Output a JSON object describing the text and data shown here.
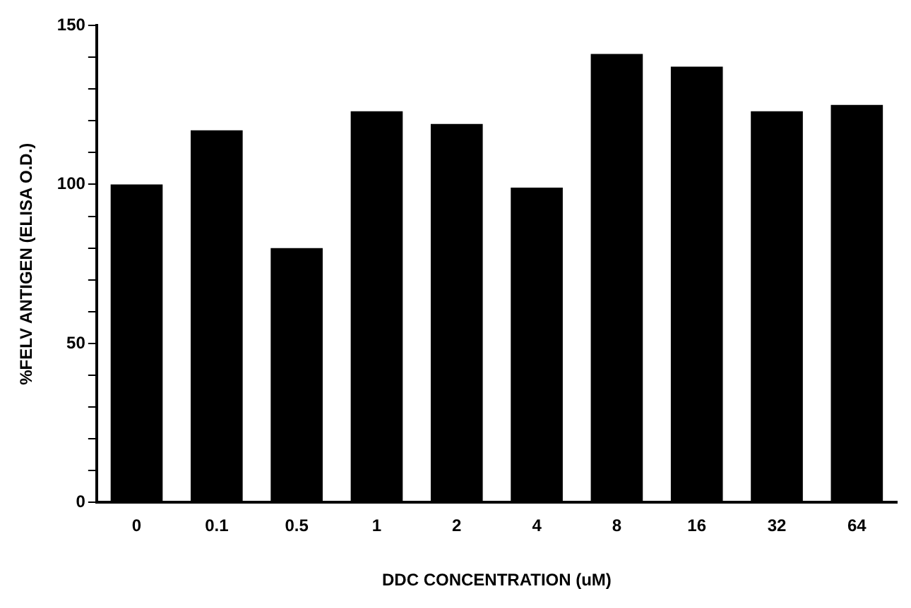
{
  "chart_data": {
    "type": "bar",
    "xlabel": "DDC CONCENTRATION (uM)",
    "ylabel": "%FELV ANTIGEN (ELISA O.D.)",
    "categories": [
      "0",
      "0.1",
      "0.5",
      "1",
      "2",
      "4",
      "8",
      "16",
      "32",
      "64"
    ],
    "values": [
      100,
      117,
      80,
      123,
      119,
      99,
      141,
      137,
      123,
      125
    ],
    "color": "#000000",
    "ylim": [
      0,
      150
    ],
    "yticks": [
      0,
      {
        "value": 10,
        "label": null
      },
      {
        "value": 20,
        "label": null
      },
      {
        "value": 30,
        "label": null
      },
      {
        "value": 40,
        "label": null
      },
      50,
      {
        "value": 60,
        "label": null
      },
      {
        "value": 70,
        "label": null
      },
      {
        "value": 80,
        "label": null
      },
      {
        "value": 90,
        "label": null
      },
      100,
      {
        "value": 110,
        "label": null
      },
      {
        "value": 120,
        "label": null
      },
      {
        "value": 130,
        "label": null
      },
      {
        "value": 140,
        "label": null
      },
      150
    ],
    "grid": false,
    "legend": false
  }
}
